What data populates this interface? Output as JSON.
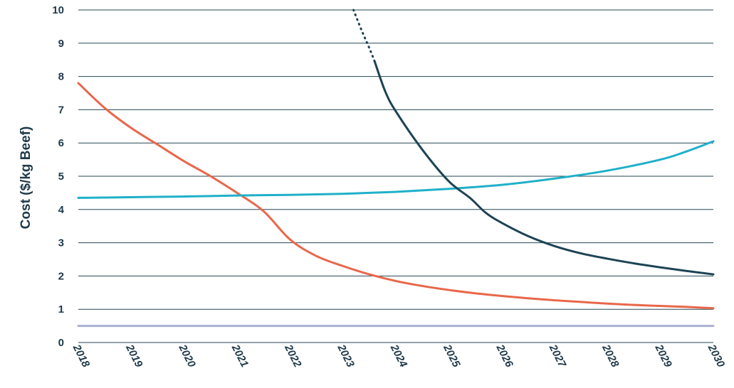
{
  "chart_data": {
    "type": "line",
    "title": "",
    "xlabel": "",
    "ylabel": "Cost ($/kg Beef)",
    "x_categories": [
      "2018",
      "2019",
      "2020",
      "2021",
      "2022",
      "2023",
      "2024",
      "2025",
      "2026",
      "2027",
      "2028",
      "2029",
      "2030"
    ],
    "xlim": [
      2018,
      2030
    ],
    "ylim": [
      0,
      10
    ],
    "y_ticks": [
      0,
      1,
      2,
      3,
      4,
      5,
      6,
      7,
      8,
      9,
      10
    ],
    "grid": true,
    "legend": "none",
    "series": [
      {
        "color": "#e8674a",
        "style": "solid",
        "points": [
          [
            2018,
            7.8
          ],
          [
            2018.5,
            7.05
          ],
          [
            2019,
            6.45
          ],
          [
            2019.5,
            5.95
          ],
          [
            2020,
            5.45
          ],
          [
            2020.5,
            5.0
          ],
          [
            2021,
            4.5
          ],
          [
            2021.5,
            3.95
          ],
          [
            2022,
            3.1
          ],
          [
            2022.5,
            2.6
          ],
          [
            2023,
            2.3
          ],
          [
            2023.5,
            2.05
          ],
          [
            2024,
            1.85
          ],
          [
            2024.5,
            1.7
          ],
          [
            2025,
            1.58
          ],
          [
            2025.5,
            1.48
          ],
          [
            2026,
            1.4
          ],
          [
            2026.5,
            1.33
          ],
          [
            2027,
            1.27
          ],
          [
            2027.5,
            1.22
          ],
          [
            2028,
            1.17
          ],
          [
            2028.5,
            1.13
          ],
          [
            2029,
            1.1
          ],
          [
            2029.5,
            1.07
          ],
          [
            2030,
            1.03
          ]
        ]
      },
      {
        "color": "#1fb0c9",
        "style": "solid",
        "points": [
          [
            2018,
            4.35
          ],
          [
            2019,
            4.37
          ],
          [
            2020,
            4.39
          ],
          [
            2021,
            4.42
          ],
          [
            2022,
            4.44
          ],
          [
            2023,
            4.47
          ],
          [
            2024,
            4.53
          ],
          [
            2025,
            4.62
          ],
          [
            2026,
            4.74
          ],
          [
            2027,
            4.93
          ],
          [
            2028,
            5.17
          ],
          [
            2029,
            5.5
          ],
          [
            2029.5,
            5.75
          ],
          [
            2030,
            6.05
          ]
        ]
      },
      {
        "color": "#1d4354",
        "style": "dotted",
        "points": [
          [
            2023.2,
            10.0
          ],
          [
            2023.35,
            9.4
          ],
          [
            2023.5,
            8.85
          ],
          [
            2023.6,
            8.45
          ]
        ]
      },
      {
        "color": "#1d4354",
        "style": "solid",
        "points": [
          [
            2023.6,
            8.45
          ],
          [
            2023.8,
            7.55
          ],
          [
            2024,
            6.95
          ],
          [
            2024.5,
            5.8
          ],
          [
            2025,
            4.85
          ],
          [
            2025.4,
            4.35
          ],
          [
            2025.7,
            3.9
          ],
          [
            2026,
            3.6
          ],
          [
            2026.5,
            3.2
          ],
          [
            2027,
            2.9
          ],
          [
            2027.5,
            2.68
          ],
          [
            2028,
            2.52
          ],
          [
            2028.5,
            2.38
          ],
          [
            2029,
            2.26
          ],
          [
            2029.5,
            2.15
          ],
          [
            2030,
            2.05
          ]
        ]
      },
      {
        "color": "#a9b0d0",
        "style": "solid",
        "points": [
          [
            2018,
            0.5
          ],
          [
            2030,
            0.5
          ]
        ]
      }
    ]
  }
}
